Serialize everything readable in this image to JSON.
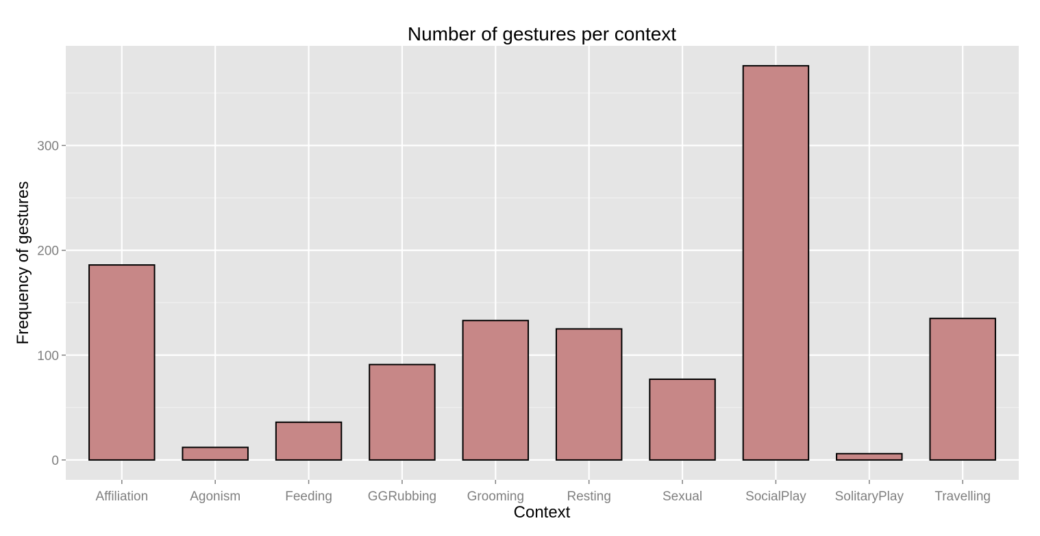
{
  "chart_data": {
    "type": "bar",
    "title": "Number of gestures per context",
    "xlabel": "Context",
    "ylabel": "Frequency of gestures",
    "categories": [
      "Affiliation",
      "Agonism",
      "Feeding",
      "GGRubbing",
      "Grooming",
      "Resting",
      "Sexual",
      "SocialPlay",
      "SolitaryPlay",
      "Travelling"
    ],
    "values": [
      186,
      12,
      36,
      91,
      133,
      125,
      77,
      376,
      6,
      135
    ],
    "ylim": [
      -19,
      395
    ],
    "yticks": [
      0,
      100,
      200,
      300
    ],
    "ytick_labels": [
      "0",
      "100",
      "200",
      "300"
    ],
    "grid": true,
    "legend": "none",
    "colors": {
      "bar_fill": "#c78787",
      "bar_outline": "#000000",
      "panel_background": "#e5e5e5",
      "grid_major": "#ffffff",
      "grid_minor": "#f2f2f2",
      "tick_text": "#7f7f7f"
    }
  }
}
